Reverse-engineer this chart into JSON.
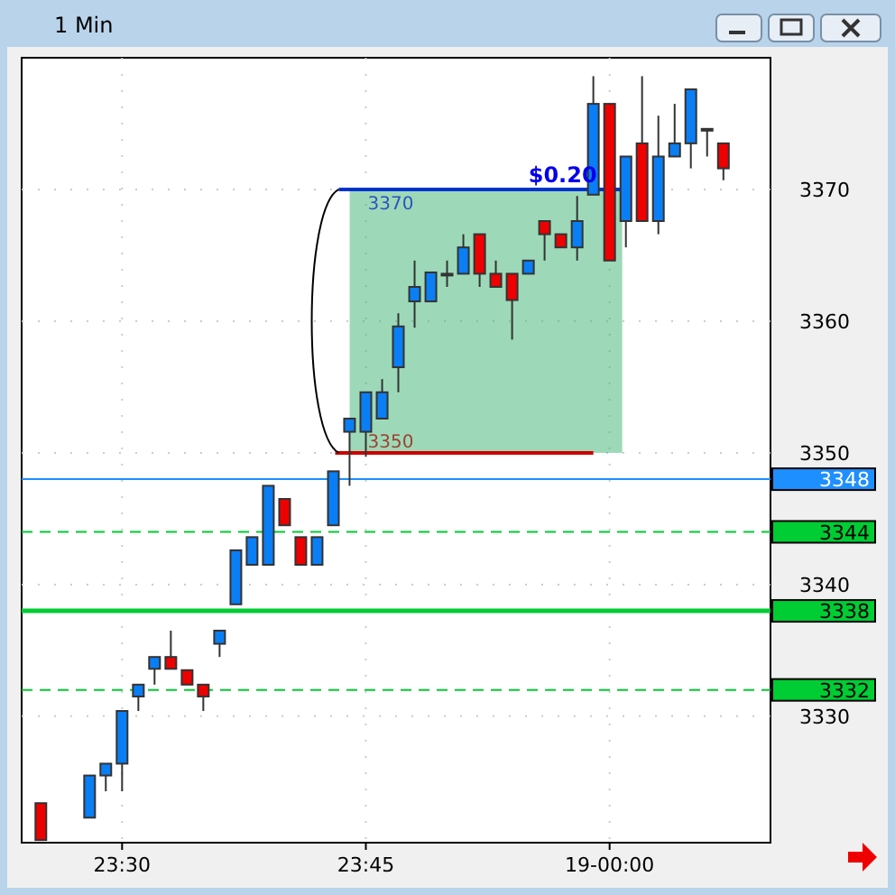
{
  "chart_data": {
    "type": "candlestick",
    "title": "1 Min",
    "x": [
      23.4167,
      23.4667,
      23.4833,
      23.5,
      23.5167,
      23.5333,
      23.55,
      23.5667,
      23.5833,
      23.6,
      23.6167,
      23.6333,
      23.65,
      23.6667,
      23.6833,
      23.7,
      23.7167,
      23.7333,
      23.75,
      23.7667,
      23.7833,
      23.8,
      23.8167,
      23.8333,
      23.85,
      23.8667,
      23.8833,
      23.9,
      23.9167,
      23.9333,
      23.95,
      23.9667,
      23.9833,
      24,
      24.0167,
      24.0333,
      24.05,
      24.0667,
      24.0833,
      24.1,
      24.1167
    ],
    "ohlc": [
      [
        3323.4,
        3323.4,
        3320.6,
        3320.6
      ],
      [
        3322.3,
        3325.5,
        3322.3,
        3325.5
      ],
      [
        3325.5,
        3326.4,
        3324.3,
        3326.4
      ],
      [
        3326.4,
        3330.4,
        3324.3,
        3330.4
      ],
      [
        3331.5,
        3332.4,
        3330.4,
        3332.4
      ],
      [
        3333.6,
        3334.5,
        3332.4,
        3334.5
      ],
      [
        3334.5,
        3336.5,
        3333.6,
        3333.6
      ],
      [
        3333.5,
        3333.5,
        3332.4,
        3332.4
      ],
      [
        3332.4,
        3332.4,
        3330.4,
        3331.5
      ],
      [
        3335.5,
        3336.5,
        3334.5,
        3336.5
      ],
      [
        3338.5,
        3342.6,
        3338.5,
        3342.6
      ],
      [
        3341.5,
        3343.6,
        3341.5,
        3343.6
      ],
      [
        3341.5,
        3347.5,
        3341.5,
        3347.5
      ],
      [
        3346.5,
        3346.5,
        3344.5,
        3344.5
      ],
      [
        3343.6,
        3343.6,
        3341.5,
        3341.5
      ],
      [
        3341.5,
        3343.6,
        3341.5,
        3343.6
      ],
      [
        3344.5,
        3348.6,
        3344.5,
        3348.6
      ],
      [
        3351.6,
        3352.6,
        3347.5,
        3352.6
      ],
      [
        3351.6,
        3354.6,
        3349.7,
        3354.6
      ],
      [
        3352.6,
        3355.6,
        3352.6,
        3354.6
      ],
      [
        3356.5,
        3360.6,
        3354.6,
        3359.6
      ],
      [
        3361.5,
        3364.6,
        3359.5,
        3362.6
      ],
      [
        3361.5,
        3363.7,
        3361.5,
        3363.7
      ],
      [
        3363.6,
        3364.6,
        3362.6,
        3363.6
      ],
      [
        3363.6,
        3366.6,
        3363.6,
        3365.6
      ],
      [
        3366.6,
        3366.6,
        3362.6,
        3363.6
      ],
      [
        3363.6,
        3364.6,
        3362.6,
        3362.6
      ],
      [
        3363.6,
        3363.6,
        3358.6,
        3361.6
      ],
      [
        3363.6,
        3364.6,
        3363.6,
        3364.6
      ],
      [
        3367.6,
        3367.6,
        3364.6,
        3366.6
      ],
      [
        3366.6,
        3366.6,
        3365.6,
        3365.6
      ],
      [
        3365.6,
        3369.5,
        3364.6,
        3367.6
      ],
      [
        3369.6,
        3378.6,
        3369.6,
        3376.5
      ],
      [
        3376.5,
        3376.5,
        3364.6,
        3364.6
      ],
      [
        3367.6,
        3372.5,
        3365.6,
        3372.5
      ],
      [
        3373.5,
        3378.6,
        3367.6,
        3367.6
      ],
      [
        3367.6,
        3375.6,
        3366.6,
        3372.5
      ],
      [
        3372.5,
        3376.5,
        3372.5,
        3373.5
      ],
      [
        3373.5,
        3377.6,
        3371.6,
        3377.6
      ],
      [
        3374.6,
        3374.6,
        3372.5,
        3374.6
      ],
      [
        3373.5,
        3373.5,
        3370.7,
        3371.6
      ]
    ],
    "colors": [
      "#ee0000",
      "#0a7ef5",
      "#0a7ef5",
      "#0a7ef5",
      "#0a7ef5",
      "#0a7ef5",
      "#ee0000",
      "#ee0000",
      "#ee0000",
      "#0a7ef5",
      "#0a7ef5",
      "#0a7ef5",
      "#0a7ef5",
      "#ee0000",
      "#ee0000",
      "#0a7ef5",
      "#0a7ef5",
      "#0a7ef5",
      "#0a7ef5",
      "#0a7ef5",
      "#0a7ef5",
      "#0a7ef5",
      "#0a7ef5",
      "#0a7ef5",
      "#0a7ef5",
      "#ee0000",
      "#ee0000",
      "#ee0000",
      "#0a7ef5",
      "#ee0000",
      "#ee0000",
      "#0a7ef5",
      "#0a7ef5",
      "#ee0000",
      "#0a7ef5",
      "#ee0000",
      "#0a7ef5",
      "#0a7ef5",
      "#0a7ef5",
      "#0a7ef5",
      "#ee0000"
    ],
    "bands": [
      {
        "axis": "y",
        "from": 3350,
        "to": 3370,
        "color": "#3cb371"
      }
    ],
    "xlim": [
      23.397,
      24.165
    ],
    "xticks": [
      {
        "value": 23.5,
        "label": "23:30"
      },
      {
        "value": 23.75,
        "label": "23:45"
      },
      {
        "value": 24,
        "label": "19-00:00"
      }
    ],
    "ylim": [
      3320.4,
      3380
    ],
    "yticks": [
      3330,
      3340,
      3350,
      3360,
      3370
    ],
    "grid": true,
    "ref_lines": [
      {
        "axis": "y",
        "value": 3348,
        "label": "3348",
        "color": "#1e8fff",
        "line_style": "solid"
      },
      {
        "axis": "y",
        "value": 3344,
        "label": "3344",
        "color": "#00cc33",
        "line_style": "dashed"
      },
      {
        "axis": "y",
        "value": 3338,
        "label": "3338",
        "color": "#00cc33",
        "line_style": "solid"
      },
      {
        "axis": "y",
        "value": 3332,
        "label": "3332",
        "color": "#00cc33",
        "line_style": "dashed"
      }
    ],
    "annotations": [
      "3370",
      "3350",
      "$0.20"
    ]
  }
}
